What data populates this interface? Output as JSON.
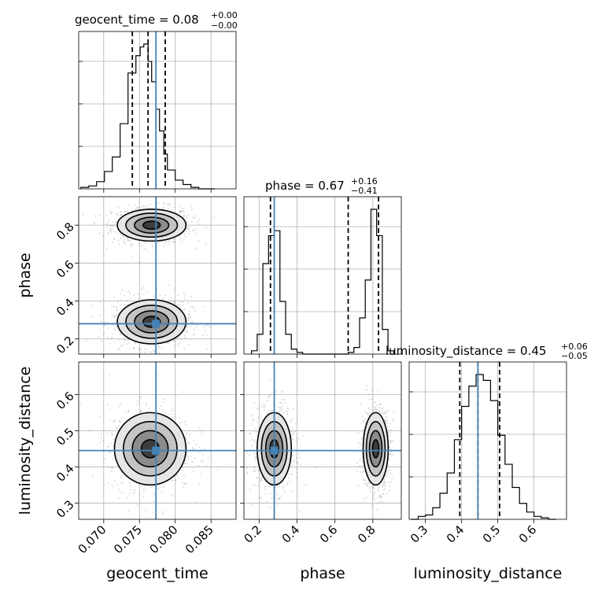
{
  "chart_data": {
    "type": "corner",
    "parameters": [
      "geocent_time",
      "phase",
      "luminosity_distance"
    ],
    "truth_color": "#4682b4",
    "truths": {
      "geocent_time": 0.0773,
      "phase": 0.28,
      "luminosity_distance": 0.445
    },
    "grid": true,
    "titles": [
      {
        "label": "geocent_time = 0.08",
        "sup": "+0.00",
        "sub": "−0.00"
      },
      {
        "label": "phase = 0.67",
        "sup": "+0.16",
        "sub": "−0.41"
      },
      {
        "label": "luminosity_distance = 0.45",
        "sup": "+0.06",
        "sub": "−0.05"
      }
    ],
    "axis_labels": {
      "x": [
        "geocent_time",
        "phase",
        "luminosity_distance"
      ],
      "y": [
        "phase",
        "luminosity_distance"
      ]
    },
    "ranges": {
      "geocent_time": [
        0.0665,
        0.0885
      ],
      "phase": [
        0.12,
        0.95
      ],
      "luminosity_distance": [
        0.255,
        0.69
      ]
    },
    "ticks": {
      "geocent_time": [
        "0.070",
        "0.075",
        "0.080",
        "0.085"
      ],
      "phase": [
        "0.2",
        "0.4",
        "0.6",
        "0.8"
      ],
      "phase_y": [
        "0.2",
        "0.4",
        "0.6",
        "0.8"
      ],
      "luminosity_distance": [
        "0.3",
        "0.4",
        "0.5",
        "0.6"
      ]
    },
    "marginals": {
      "geocent_time": {
        "edges": [
          0.0668,
          0.0679,
          0.069,
          0.0701,
          0.0712,
          0.0723,
          0.0734,
          0.0745,
          0.0751,
          0.0756,
          0.0762,
          0.0767,
          0.0773,
          0.0778,
          0.0784,
          0.0789,
          0.08,
          0.0811,
          0.0822,
          0.0833,
          0.0844,
          0.0855
        ],
        "counts": [
          1,
          2,
          5,
          12,
          22,
          45,
          80,
          92,
          98,
          100,
          88,
          74,
          55,
          40,
          24,
          13,
          6,
          3,
          1,
          0,
          0
        ],
        "quantiles": [
          0.074,
          0.0762,
          0.0786
        ]
      },
      "phase": {
        "edges": [
          0.16,
          0.19,
          0.22,
          0.25,
          0.28,
          0.31,
          0.34,
          0.37,
          0.4,
          0.43,
          0.46,
          0.49,
          0.52,
          0.55,
          0.58,
          0.61,
          0.64,
          0.67,
          0.7,
          0.73,
          0.76,
          0.79,
          0.82,
          0.85,
          0.88,
          0.91
        ],
        "counts": [
          2,
          12,
          55,
          72,
          75,
          32,
          12,
          3,
          1,
          0,
          0,
          0,
          0,
          0,
          0,
          0,
          0,
          1,
          4,
          22,
          45,
          88,
          72,
          15,
          2
        ],
        "quantiles": [
          0.26,
          0.67,
          0.83
        ]
      },
      "luminosity_distance": {
        "edges": [
          0.26,
          0.28,
          0.3,
          0.32,
          0.34,
          0.36,
          0.38,
          0.4,
          0.42,
          0.44,
          0.46,
          0.48,
          0.5,
          0.52,
          0.54,
          0.56,
          0.58,
          0.6,
          0.62,
          0.64,
          0.66
        ],
        "counts": [
          0,
          2,
          3,
          8,
          18,
          32,
          55,
          78,
          92,
          100,
          96,
          82,
          58,
          38,
          22,
          11,
          5,
          2,
          1,
          0
        ],
        "quantiles": [
          0.395,
          0.445,
          0.505
        ]
      }
    },
    "contours": {
      "geocent_time_phase": [
        {
          "cx": 0.0767,
          "cy": 0.8,
          "sx": 0.0024,
          "sy": 0.042,
          "levels": [
            0.5,
            1.0,
            1.5,
            2.0
          ]
        },
        {
          "cx": 0.0767,
          "cy": 0.29,
          "sx": 0.0024,
          "sy": 0.058,
          "levels": [
            0.5,
            1.0,
            1.5,
            2.0
          ]
        }
      ],
      "geocent_time_luminosity_distance": [
        {
          "cx": 0.0765,
          "cy": 0.45,
          "sx": 0.0025,
          "sy": 0.05,
          "levels": [
            0.5,
            1.0,
            1.5,
            2.0
          ]
        }
      ],
      "phase_luminosity_distance": [
        {
          "cx": 0.28,
          "cy": 0.45,
          "sx": 0.045,
          "sy": 0.05,
          "levels": [
            0.5,
            1.0,
            1.5,
            2.0
          ]
        },
        {
          "cx": 0.815,
          "cy": 0.45,
          "sx": 0.033,
          "sy": 0.05,
          "levels": [
            0.5,
            1.0,
            1.5,
            2.0
          ]
        }
      ]
    }
  }
}
